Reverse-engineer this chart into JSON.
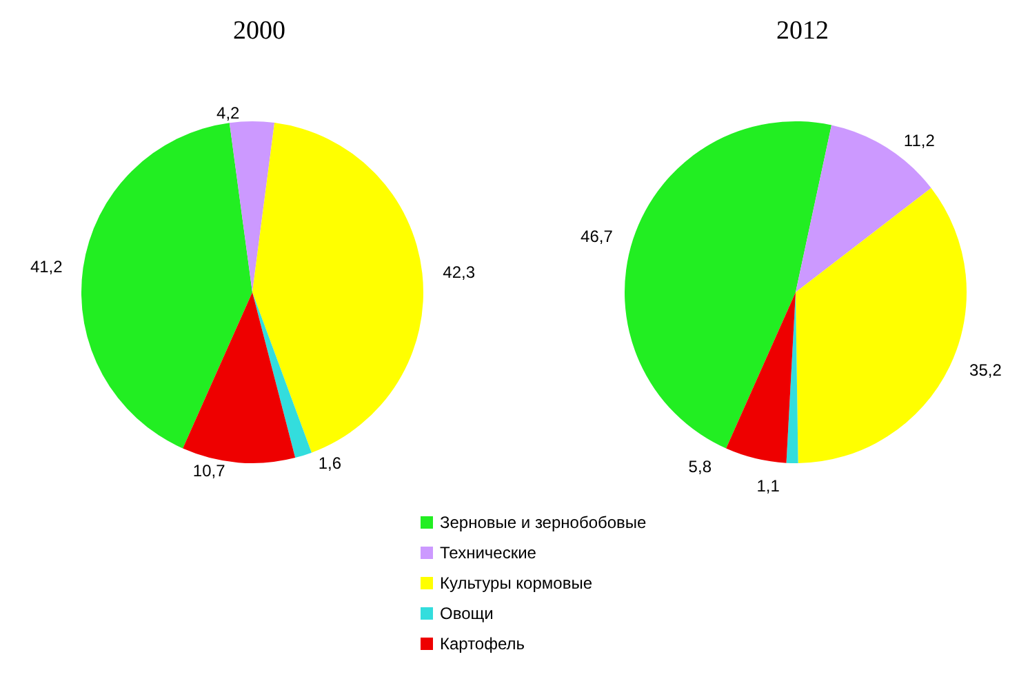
{
  "chart_data": [
    {
      "type": "pie",
      "title": "2000",
      "categories": [
        null,
        null,
        null,
        null,
        null
      ],
      "values": [
        41.2,
        4.2,
        42.3,
        1.6,
        10.7
      ],
      "value_labels": [
        "41,2",
        "4,2",
        "42,3",
        "1,6",
        "10,7"
      ],
      "colors": [
        "#22ee22",
        "#cc99ff",
        "#ffff00",
        "#33dddd",
        "#ee0000"
      ]
    },
    {
      "type": "pie",
      "title": "2012",
      "categories": [
        "Зерновые и зернобобовые",
        "Технические",
        "Культуры кормовые",
        "Овощи",
        "Картофель"
      ],
      "values": [
        46.7,
        11.2,
        35.2,
        1.1,
        5.8
      ],
      "value_labels": [
        "46,7",
        "11,2",
        "35,2",
        "1,1",
        "5,8"
      ],
      "colors": [
        "#22ee22",
        "#cc99ff",
        "#ffff00",
        "#33dddd",
        "#ee0000"
      ],
      "legend": "bottom"
    }
  ]
}
